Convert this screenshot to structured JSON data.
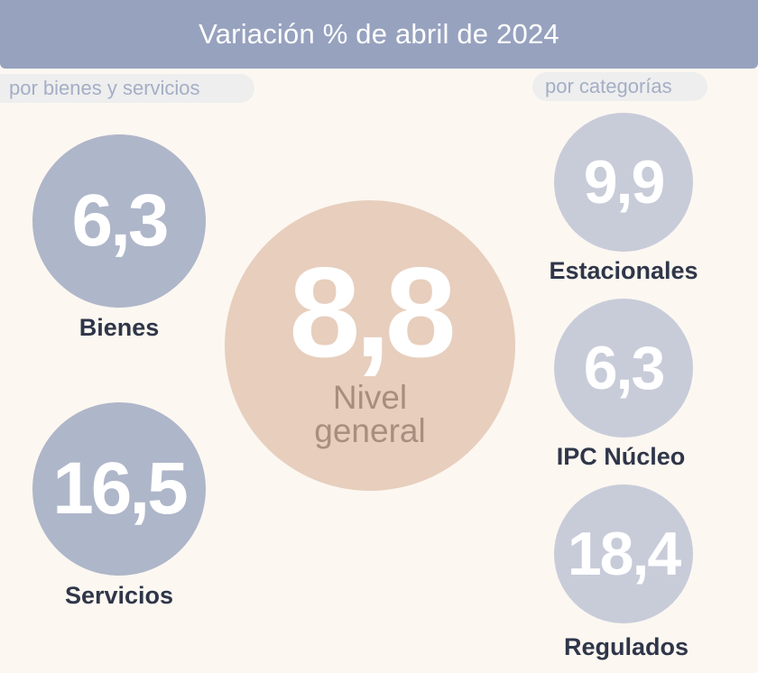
{
  "header": {
    "title": "Variación % de abril de 2024"
  },
  "left_pill": "por bienes y servicios",
  "right_pill": "por categorías",
  "bienes": {
    "value": "6,3",
    "label": "Bienes"
  },
  "servicios": {
    "value": "16,5",
    "label": "Servicios"
  },
  "general": {
    "value": "8,8",
    "label": "Nivel\ngeneral"
  },
  "estacionales": {
    "value": "9,9",
    "label": "Estacionales"
  },
  "nucleo": {
    "value": "6,3",
    "label": "IPC Núcleo"
  },
  "regulados": {
    "value": "18,4",
    "label": "Regulados"
  },
  "colors": {
    "header": "#97a2bf",
    "background": "#fcf7f1",
    "goods_services_circle": "#aeb6c9",
    "category_circle": "#c8ccd9",
    "general_circle": "#e7cebd",
    "label_text": "#2f3649"
  }
}
